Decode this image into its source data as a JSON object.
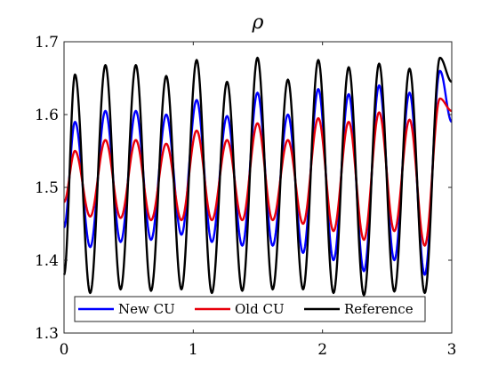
{
  "chart_data": {
    "type": "line",
    "title": "ρ",
    "xlabel": "",
    "ylabel": "",
    "xlim": [
      0,
      3
    ],
    "ylim": [
      1.3,
      1.7
    ],
    "xticks": [
      0,
      1,
      2,
      3
    ],
    "xtick_labels": [
      "0",
      "1",
      "2",
      "3"
    ],
    "yticks": [
      1.3,
      1.4,
      1.5,
      1.6,
      1.7
    ],
    "ytick_labels": [
      "1.3",
      "1.4",
      "1.5",
      "1.6",
      "1.7"
    ],
    "grid": false,
    "legend_position": "bottom-center",
    "oscillation": {
      "period": 0.2353,
      "first_peak_x": 0.085,
      "cycles": 13
    },
    "series": [
      {
        "name": "New CU",
        "color": "#0000ff",
        "start_y": 1.445,
        "end_y": 1.59,
        "peaks": [
          1.59,
          1.605,
          1.605,
          1.6,
          1.62,
          1.598,
          1.63,
          1.6,
          1.635,
          1.628,
          1.64,
          1.63,
          1.66
        ],
        "troughs": [
          1.418,
          1.425,
          1.428,
          1.435,
          1.425,
          1.42,
          1.42,
          1.41,
          1.4,
          1.385,
          1.4,
          1.38,
          1.375,
          1.385
        ]
      },
      {
        "name": "Old CU",
        "color": "#e8000b",
        "start_y": 1.48,
        "end_y": 1.605,
        "peaks": [
          1.55,
          1.565,
          1.565,
          1.56,
          1.578,
          1.565,
          1.588,
          1.565,
          1.595,
          1.59,
          1.603,
          1.593,
          1.622
        ],
        "troughs": [
          1.46,
          1.458,
          1.455,
          1.455,
          1.455,
          1.455,
          1.455,
          1.45,
          1.44,
          1.428,
          1.44,
          1.42,
          1.418,
          1.412
        ]
      },
      {
        "name": "Reference",
        "color": "#000000",
        "start_y": 1.38,
        "end_y": 1.645,
        "peaks": [
          1.655,
          1.668,
          1.668,
          1.653,
          1.675,
          1.645,
          1.678,
          1.648,
          1.675,
          1.665,
          1.67,
          1.663,
          1.678
        ],
        "troughs": [
          1.355,
          1.36,
          1.358,
          1.36,
          1.355,
          1.358,
          1.36,
          1.36,
          1.355,
          1.352,
          1.357,
          1.355,
          1.352,
          1.36
        ]
      }
    ]
  }
}
